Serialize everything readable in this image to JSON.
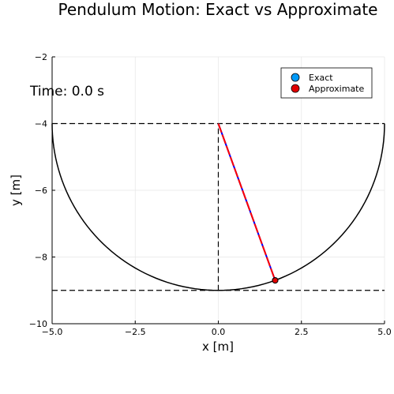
{
  "chart_data": {
    "type": "line",
    "title": "Pendulum Motion: Exact vs Approximate",
    "xlabel": "x [m]",
    "ylabel": "y [m]",
    "xlim": [
      -5,
      5
    ],
    "ylim": [
      -10,
      -2
    ],
    "xticks": [
      -5.0,
      -2.5,
      0.0,
      2.5,
      5.0
    ],
    "xtick_labels": [
      "−5.0",
      "−2.5",
      "0.0",
      "2.5",
      "5.0"
    ],
    "yticks": [
      -10,
      -8,
      -6,
      -4,
      -2
    ],
    "ytick_labels": [
      "−10",
      "−8",
      "−6",
      "−4",
      "−2"
    ],
    "grid": true,
    "legend_position": "top-right",
    "annotation": "Time: 0.0 s",
    "pivot": [
      0,
      -4
    ],
    "arc": {
      "center": [
        0,
        -4
      ],
      "radius": 5,
      "from_deg": 180,
      "to_deg": 360
    },
    "reference_lines": {
      "horizontal": [
        -4,
        -9
      ],
      "vertical": {
        "x": 0,
        "from": -9,
        "to": -4
      }
    },
    "series": [
      {
        "name": "Exact",
        "color": "#009af9",
        "rod_color": "#0000ff",
        "bob": [
          1.71,
          -8.7
        ]
      },
      {
        "name": "Approximate",
        "color": "#e10000",
        "rod_color": "#ff0000",
        "bob": [
          1.71,
          -8.7
        ]
      }
    ]
  }
}
